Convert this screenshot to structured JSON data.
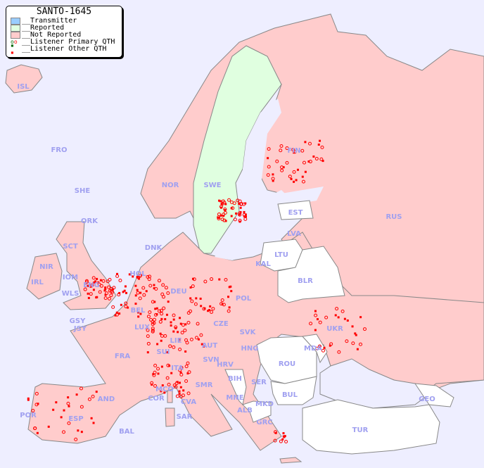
{
  "title": "SANTO-1645",
  "legend": [
    {
      "label": "__Transmitter",
      "color": "#99ccff"
    },
    {
      "label": "__Reported",
      "color": "#e0ffe0"
    },
    {
      "label": "__Not Reported",
      "color": "#ffcccc"
    },
    {
      "label": "__Listener Primary QTH",
      "icon": "open-circle"
    },
    {
      "label": "__Listener Other QTH",
      "icon": "filled-square"
    }
  ],
  "colors": {
    "sea": "#eeeeff",
    "not_reported": "#ffcccc",
    "reported": "#e0ffe0",
    "no_data": "#ffffff",
    "label": "#a0a0f0",
    "marker": "#ff0000",
    "border": "#888888"
  },
  "countries": [
    "ISL",
    "FRO",
    "SHE",
    "ORK",
    "NOR",
    "SWE",
    "FIN",
    "EST",
    "LVA",
    "LTU",
    "RUS",
    "DNK",
    "KAL",
    "BLR",
    "HOL",
    "DEU",
    "POL",
    "IRL",
    "IOM",
    "WLS",
    "ENG",
    "NIR",
    "SCT",
    "GSY",
    "JSY",
    "BEL",
    "LUX",
    "CZE",
    "SVK",
    "UKR",
    "FRA",
    "SUI",
    "LIE",
    "AUT",
    "HNG",
    "MDA",
    "SVN",
    "HRV",
    "ROU",
    "ITA",
    "BIH",
    "SER",
    "SMR",
    "MCO",
    "COR",
    "BUL",
    "MNE",
    "MKD",
    "ALB",
    "CVA",
    "GEO",
    "AND",
    "POR",
    "ESP",
    "SAR",
    "GRC",
    "TUR",
    "BAL"
  ]
}
